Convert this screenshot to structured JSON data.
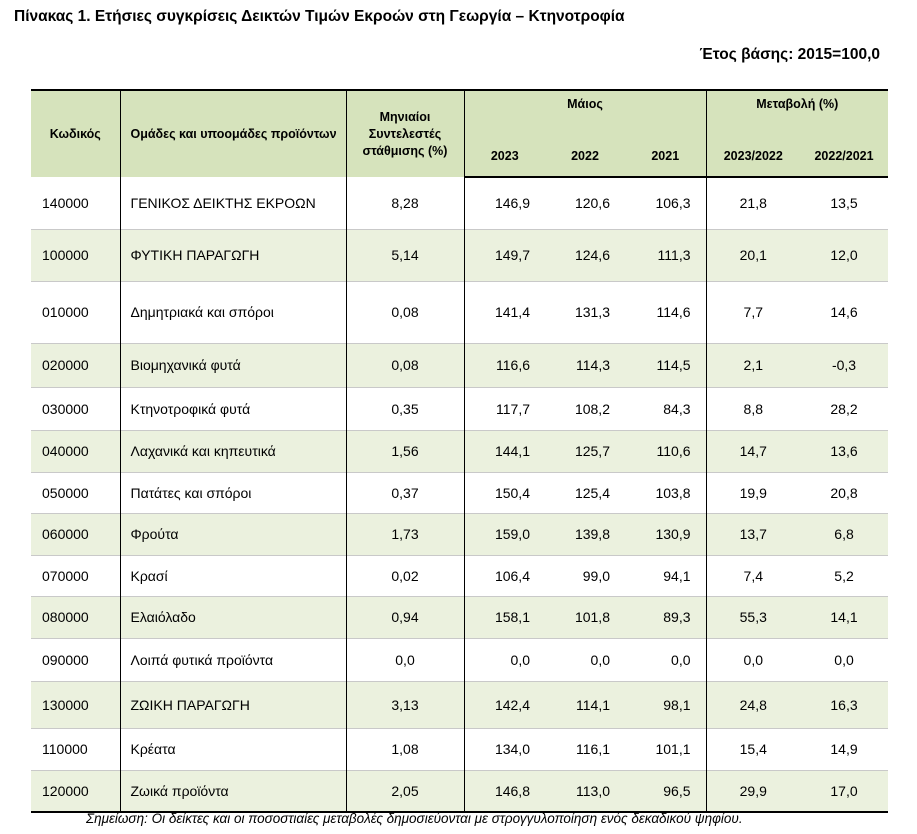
{
  "title": "Πίνακας 1. Ετήσιες συγκρίσεις Δεικτών Τιμών Εκροών στη Γεωργία – Κτηνοτροφία",
  "base_year": "Έτος βάσης: 2015=100,0",
  "header": {
    "code": "Κωδικός",
    "group": "Ομάδες και υποομάδες προϊόντων",
    "weights": "Μηνιαίοι Συντελεστές στάθμισης (%)",
    "month": "Μάιος",
    "y2023": "2023",
    "y2022": "2022",
    "y2021": "2021",
    "change": "Μεταβολή (%)",
    "c1": "2023/2022",
    "c2": "2022/2021"
  },
  "rows": [
    {
      "code": "140000",
      "name": "ΓΕΝΙΚΟΣ ΔΕΙΚΤΗΣ ΕΚΡΟΩΝ",
      "weight": "8,28",
      "y2023": "146,9",
      "y2022": "120,6",
      "y2021": "106,3",
      "c1": "21,8",
      "c2": "13,5",
      "highlight": false,
      "height": 52
    },
    {
      "code": "100000",
      "name": "ΦΥΤΙΚΗ ΠΑΡΑΓΩΓΗ",
      "weight": "5,14",
      "y2023": "149,7",
      "y2022": "124,6",
      "y2021": "111,3",
      "c1": "20,1",
      "c2": "12,0",
      "highlight": true,
      "height": 52
    },
    {
      "code": "010000",
      "name": "Δημητριακά και σπόροι",
      "weight": "0,08",
      "y2023": "141,4",
      "y2022": "131,3",
      "y2021": "114,6",
      "c1": "7,7",
      "c2": "14,6",
      "highlight": false,
      "height": 62
    },
    {
      "code": "020000",
      "name": "Βιομηχανικά φυτά",
      "weight": "0,08",
      "y2023": "116,6",
      "y2022": "114,3",
      "y2021": "114,5",
      "c1": "2,1",
      "c2": "-0,3",
      "highlight": true,
      "height": 44
    },
    {
      "code": "030000",
      "name": "Κτηνοτροφικά φυτά",
      "weight": "0,35",
      "y2023": "117,7",
      "y2022": "108,2",
      "y2021": "84,3",
      "c1": "8,8",
      "c2": "28,2",
      "highlight": false,
      "height": 43
    },
    {
      "code": "040000",
      "name": "Λαχανικά και κηπευτικά",
      "weight": "1,56",
      "y2023": "144,1",
      "y2022": "125,7",
      "y2021": "110,6",
      "c1": "14,7",
      "c2": "13,6",
      "highlight": true,
      "height": 42
    },
    {
      "code": "050000",
      "name": "Πατάτες και σπόροι",
      "weight": "0,37",
      "y2023": "150,4",
      "y2022": "125,4",
      "y2021": "103,8",
      "c1": "19,9",
      "c2": "20,8",
      "highlight": false,
      "height": 41
    },
    {
      "code": "060000",
      "name": "Φρούτα",
      "weight": "1,73",
      "y2023": "159,0",
      "y2022": "139,8",
      "y2021": "130,9",
      "c1": "13,7",
      "c2": "6,8",
      "highlight": true,
      "height": 42
    },
    {
      "code": "070000",
      "name": "Κρασί",
      "weight": "0,02",
      "y2023": "106,4",
      "y2022": "99,0",
      "y2021": "94,1",
      "c1": "7,4",
      "c2": "5,2",
      "highlight": false,
      "height": 41
    },
    {
      "code": "080000",
      "name": "Ελαιόλαδο",
      "weight": "0,94",
      "y2023": "158,1",
      "y2022": "101,8",
      "y2021": "89,3",
      "c1": "55,3",
      "c2": "14,1",
      "highlight": true,
      "height": 42
    },
    {
      "code": "090000",
      "name": "Λοιπά φυτικά προϊόντα",
      "weight": "0,0",
      "y2023": "0,0",
      "y2022": "0,0",
      "y2021": "0,0",
      "c1": "0,0",
      "c2": "0,0",
      "highlight": false,
      "height": 43
    },
    {
      "code": "130000",
      "name": "ΖΩΙΚΗ ΠΑΡΑΓΩΓΗ",
      "weight": "3,13",
      "y2023": "142,4",
      "y2022": "114,1",
      "y2021": "98,1",
      "c1": "24,8",
      "c2": "16,3",
      "highlight": true,
      "height": 47
    },
    {
      "code": "110000",
      "name": "Κρέατα",
      "weight": "1,08",
      "y2023": "134,0",
      "y2022": "116,1",
      "y2021": "101,1",
      "c1": "15,4",
      "c2": "14,9",
      "highlight": false,
      "height": 42
    },
    {
      "code": "120000",
      "name": "Ζωικά προϊόντα",
      "weight": "2,05",
      "y2023": "146,8",
      "y2022": "113,0",
      "y2021": "96,5",
      "c1": "29,9",
      "c2": "17,0",
      "highlight": true,
      "height": 42
    }
  ],
  "note": "Σημείωση: Οι δείκτες και οι ποσοστιαίες μεταβολές δημοσιεύονται με στρογγυλοποίηση ενός δεκαδικού ψηφίου."
}
